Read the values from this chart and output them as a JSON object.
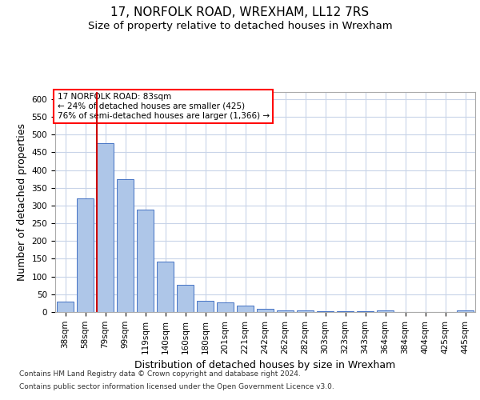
{
  "title": "17, NORFOLK ROAD, WREXHAM, LL12 7RS",
  "subtitle": "Size of property relative to detached houses in Wrexham",
  "xlabel": "Distribution of detached houses by size in Wrexham",
  "ylabel": "Number of detached properties",
  "bar_labels": [
    "38sqm",
    "58sqm",
    "79sqm",
    "99sqm",
    "119sqm",
    "140sqm",
    "160sqm",
    "180sqm",
    "201sqm",
    "221sqm",
    "242sqm",
    "262sqm",
    "282sqm",
    "303sqm",
    "323sqm",
    "343sqm",
    "364sqm",
    "384sqm",
    "404sqm",
    "425sqm",
    "445sqm"
  ],
  "bar_values": [
    30,
    320,
    475,
    375,
    288,
    143,
    76,
    32,
    28,
    17,
    8,
    5,
    4,
    3,
    3,
    3,
    5,
    0,
    0,
    0,
    5
  ],
  "bar_color": "#aec6e8",
  "bar_edge_color": "#4472c4",
  "vline_x": 2,
  "vline_color": "#cc0000",
  "ylim": [
    0,
    620
  ],
  "yticks": [
    0,
    50,
    100,
    150,
    200,
    250,
    300,
    350,
    400,
    450,
    500,
    550,
    600
  ],
  "annotation_title": "17 NORFOLK ROAD: 83sqm",
  "annotation_line1": "← 24% of detached houses are smaller (425)",
  "annotation_line2": "76% of semi-detached houses are larger (1,366) →",
  "footer_line1": "Contains HM Land Registry data © Crown copyright and database right 2024.",
  "footer_line2": "Contains public sector information licensed under the Open Government Licence v3.0.",
  "background_color": "#ffffff",
  "grid_color": "#c8d4e8",
  "title_fontsize": 11,
  "subtitle_fontsize": 9.5,
  "axis_label_fontsize": 9,
  "tick_fontsize": 7.5,
  "annotation_fontsize": 7.5,
  "footer_fontsize": 6.5
}
